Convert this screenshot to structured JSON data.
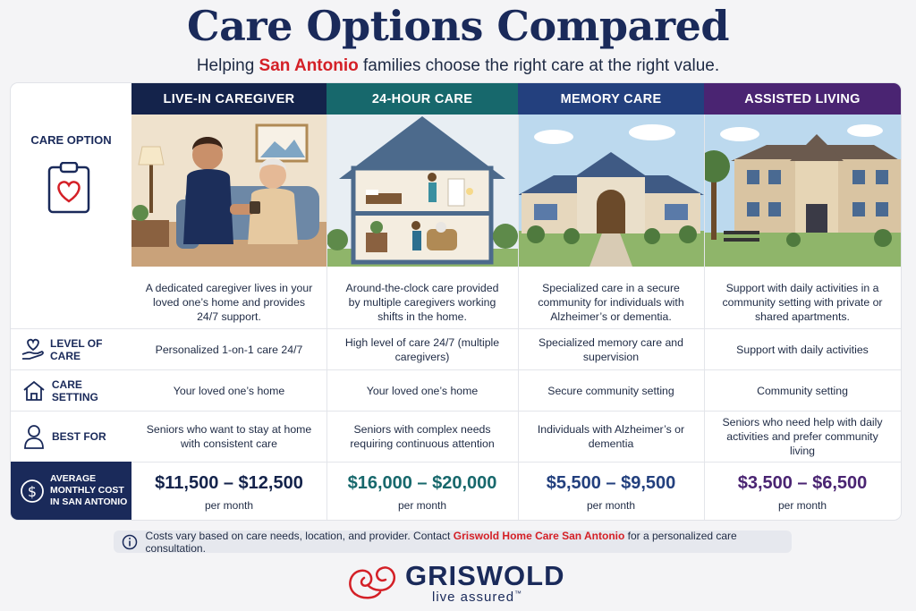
{
  "header": {
    "title": "Care Options Compared",
    "subtitle_pre": "Helping ",
    "subtitle_highlight": "San Antonio",
    "subtitle_post": " families choose the right care at the right value."
  },
  "labels": {
    "care_option": "CARE OPTION",
    "level_of_care": "LEVEL OF CARE",
    "care_setting": "CARE SETTING",
    "best_for": "BEST FOR",
    "average_cost_line1": "AVERAGE",
    "average_cost_line2": "MONTHLY COST",
    "average_cost_line3": "IN SAN ANTONIO"
  },
  "columns": [
    {
      "name": "LIVE-IN CAREGIVER",
      "color": "#14234b",
      "desc": "A dedicated caregiver lives in your loved one’s home and provides 24/7 support.",
      "level": "Personalized 1-on-1 care 24/7",
      "setting": "Your loved one’s home",
      "best": "Seniors who want to stay at home with consistent care",
      "price": "$11,500 – $12,500",
      "price_color": "#14234b",
      "per": "per month"
    },
    {
      "name": "24-HOUR CARE",
      "color": "#17686c",
      "desc": "Around-the-clock care provided by multiple caregivers working shifts in the home.",
      "level": "High level of care 24/7 (multiple caregivers)",
      "setting": "Your loved one’s home",
      "best": "Seniors with complex needs requiring continuous attention",
      "price": "$16,000 – $20,000",
      "price_color": "#17686c",
      "per": "per month"
    },
    {
      "name": "MEMORY CARE",
      "color": "#23407e",
      "desc": "Specialized care in a secure community for individuals with Alzheimer’s or dementia.",
      "level": "Specialized memory care and supervision",
      "setting": "Secure community setting",
      "best": "Individuals with Alzheimer’s or dementia",
      "price": "$5,500 – $9,500",
      "price_color": "#23407e",
      "per": "per month"
    },
    {
      "name": "ASSISTED LIVING",
      "color": "#4a2472",
      "desc": "Support with daily activities in a community setting with private or shared apartments.",
      "level": "Support with daily activities",
      "setting": "Community setting",
      "best": "Seniors who need help with daily activities and prefer community living",
      "price": "$3,500 – $6,500",
      "price_color": "#4a2472",
      "per": "per month"
    }
  ],
  "footer": {
    "note_pre": "Costs vary based on care needs, location, and provider. Contact ",
    "note_highlight": "Griswold Home Care San Antonio",
    "note_post": " for a personalized care consultation.",
    "brand_name": "GRISWOLD",
    "brand_tagline": "live assured",
    "brand_tm": "™"
  },
  "icons": {
    "clipboard": "clipboard-heart-icon",
    "level": "hand-heart-icon",
    "setting": "house-icon",
    "best": "person-icon",
    "cost": "dollar-circle-icon",
    "info": "info-icon",
    "logo": "griswold-swirl-logo"
  }
}
